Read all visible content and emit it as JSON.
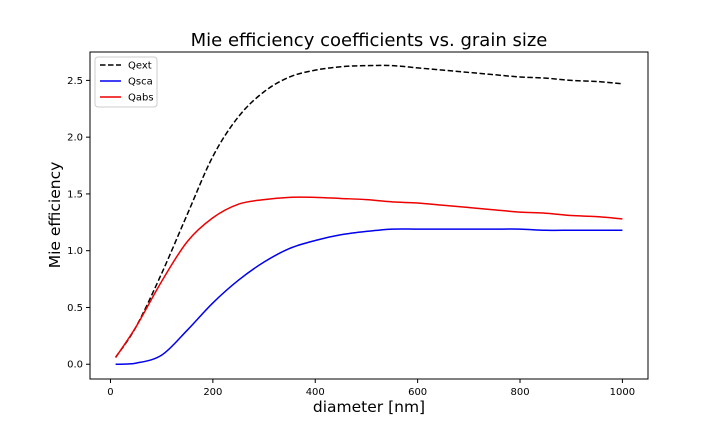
{
  "chart_data": {
    "type": "line",
    "title": "Mie efficiency coefficients vs. grain size",
    "xlabel": "diameter [nm]",
    "ylabel": "Mie efficiency",
    "xlim": [
      -40,
      1050
    ],
    "ylim": [
      -0.13,
      2.75
    ],
    "xticks": [
      0,
      200,
      400,
      600,
      800,
      1000
    ],
    "yticks": [
      0.0,
      0.5,
      1.0,
      1.5,
      2.0,
      2.5
    ],
    "xtick_labels": [
      "0",
      "200",
      "400",
      "600",
      "800",
      "1000"
    ],
    "ytick_labels": [
      "0.0",
      "0.5",
      "1.0",
      "1.5",
      "2.0",
      "2.5"
    ],
    "grid": false,
    "legend_position": "top-left",
    "x": [
      10,
      50,
      100,
      150,
      200,
      250,
      300,
      350,
      400,
      450,
      500,
      550,
      600,
      650,
      700,
      750,
      800,
      850,
      900,
      950,
      1000
    ],
    "series": [
      {
        "name": "Qext",
        "color": "#000000",
        "dash": "dashed",
        "values": [
          0.06,
          0.33,
          0.8,
          1.32,
          1.83,
          2.18,
          2.4,
          2.53,
          2.59,
          2.62,
          2.63,
          2.63,
          2.61,
          2.59,
          2.57,
          2.55,
          2.53,
          2.52,
          2.5,
          2.49,
          2.47
        ]
      },
      {
        "name": "Qsca",
        "color": "#0000ee",
        "dash": "solid",
        "values": [
          0.0,
          0.01,
          0.08,
          0.3,
          0.54,
          0.74,
          0.9,
          1.02,
          1.09,
          1.14,
          1.17,
          1.19,
          1.19,
          1.19,
          1.19,
          1.19,
          1.19,
          1.18,
          1.18,
          1.18,
          1.18
        ]
      },
      {
        "name": "Qabs",
        "color": "#ee0000",
        "dash": "solid",
        "values": [
          0.06,
          0.33,
          0.73,
          1.08,
          1.29,
          1.41,
          1.45,
          1.47,
          1.47,
          1.46,
          1.45,
          1.43,
          1.42,
          1.4,
          1.38,
          1.36,
          1.34,
          1.33,
          1.31,
          1.3,
          1.28
        ]
      }
    ]
  }
}
